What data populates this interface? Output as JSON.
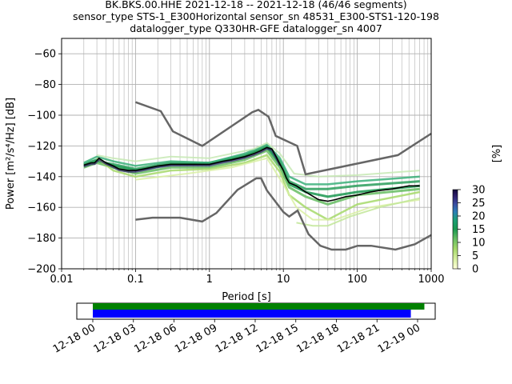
{
  "title_lines": [
    "BK.BKS.00.HHE   2021-12-18 -- 2021-12-18  (46/46 segments)",
    "sensor_type STS-1_E300Horizontal sensor_sn 48531_E300-STS1-120-198",
    "datalogger_type Q330HR-GFE datalogger_sn 4007"
  ],
  "ylabel": "Power [m²/s⁴/Hz] [dB]",
  "xlabel": "Period [s]",
  "colorbar_label": "[%]",
  "colors": {
    "model": "#666666",
    "mean": "#000000",
    "grid": "#b0b0b0",
    "data_bar": "#008000",
    "gap_bar": "#0000ff"
  },
  "chart_data": {
    "type": "heatmap",
    "subtype": "ppsd",
    "x_scale": "log",
    "xlim": [
      0.01,
      1000
    ],
    "ylim": [
      -200,
      -50
    ],
    "x_ticks": [
      {
        "value": 0.01,
        "label": "0.01"
      },
      {
        "value": 0.1,
        "label": "0.1"
      },
      {
        "value": 1,
        "label": "1"
      },
      {
        "value": 10,
        "label": "10"
      },
      {
        "value": 100,
        "label": "100"
      },
      {
        "value": 1000,
        "label": "1000"
      }
    ],
    "y_ticks": [
      {
        "value": -60,
        "label": "−60"
      },
      {
        "value": -80,
        "label": "−80"
      },
      {
        "value": -100,
        "label": "−100"
      },
      {
        "value": -120,
        "label": "−120"
      },
      {
        "value": -140,
        "label": "−140"
      },
      {
        "value": -160,
        "label": "−160"
      },
      {
        "value": -180,
        "label": "−180"
      },
      {
        "value": -200,
        "label": "−200"
      }
    ],
    "grid": true,
    "high_noise_model": [
      [
        0.1,
        -91.5
      ],
      [
        0.22,
        -97.4
      ],
      [
        0.32,
        -110.5
      ],
      [
        0.8,
        -120
      ],
      [
        3.8,
        -98
      ],
      [
        4.6,
        -96.5
      ],
      [
        6.3,
        -101
      ],
      [
        7.9,
        -113.5
      ],
      [
        15.4,
        -120
      ],
      [
        20,
        -138.5
      ],
      [
        354.8,
        -126
      ],
      [
        1000,
        -112
      ]
    ],
    "low_noise_model": [
      [
        0.1,
        -168
      ],
      [
        0.17,
        -166.7
      ],
      [
        0.4,
        -166.7
      ],
      [
        0.8,
        -169.2
      ],
      [
        1.24,
        -163.7
      ],
      [
        2.4,
        -148.6
      ],
      [
        4.3,
        -141.1
      ],
      [
        5,
        -141.1
      ],
      [
        6,
        -149
      ],
      [
        10,
        -163
      ],
      [
        12,
        -166
      ],
      [
        15.6,
        -162.1
      ],
      [
        21.9,
        -177.5
      ],
      [
        31.6,
        -185
      ],
      [
        45,
        -187.5
      ],
      [
        70,
        -187.5
      ],
      [
        101,
        -185
      ],
      [
        154,
        -185
      ],
      [
        328,
        -187.5
      ],
      [
        600,
        -184
      ],
      [
        1000,
        -178
      ]
    ],
    "mean_curve": [
      [
        0.02,
        -132.5
      ],
      [
        0.025,
        -131
      ],
      [
        0.028,
        -131
      ],
      [
        0.032,
        -128
      ],
      [
        0.04,
        -131
      ],
      [
        0.05,
        -133
      ],
      [
        0.06,
        -135
      ],
      [
        0.08,
        -136
      ],
      [
        0.1,
        -136
      ],
      [
        0.13,
        -135
      ],
      [
        0.2,
        -133
      ],
      [
        0.3,
        -132
      ],
      [
        0.5,
        -132
      ],
      [
        0.8,
        -132
      ],
      [
        1,
        -132
      ],
      [
        1.5,
        -130
      ],
      [
        2,
        -129
      ],
      [
        3,
        -127
      ],
      [
        4,
        -125
      ],
      [
        5,
        -123
      ],
      [
        6,
        -121
      ],
      [
        7,
        -122
      ],
      [
        8,
        -127
      ],
      [
        9,
        -132
      ],
      [
        10,
        -136
      ],
      [
        11,
        -141
      ],
      [
        12,
        -144
      ],
      [
        15,
        -146
      ],
      [
        20,
        -150
      ],
      [
        30,
        -155
      ],
      [
        40,
        -156
      ],
      [
        50,
        -155
      ],
      [
        70,
        -153
      ],
      [
        100,
        -152
      ],
      [
        150,
        -150
      ],
      [
        200,
        -149
      ],
      [
        300,
        -148
      ],
      [
        500,
        -146
      ],
      [
        700,
        -146
      ]
    ],
    "density_percentile_curves": [
      [
        [
          0.02,
          -133
        ],
        [
          0.03,
          -130
        ],
        [
          0.05,
          -132
        ],
        [
          0.1,
          -135
        ],
        [
          0.3,
          -131
        ],
        [
          1,
          -131
        ],
        [
          3,
          -126
        ],
        [
          6,
          -120
        ],
        [
          9,
          -130
        ],
        [
          12,
          -143
        ],
        [
          20,
          -148
        ],
        [
          40,
          -148
        ],
        [
          100,
          -146
        ],
        [
          700,
          -143
        ]
      ],
      [
        [
          0.02,
          -132
        ],
        [
          0.03,
          -129
        ],
        [
          0.05,
          -133
        ],
        [
          0.1,
          -136
        ],
        [
          0.3,
          -132
        ],
        [
          1,
          -132
        ],
        [
          3,
          -127
        ],
        [
          6,
          -121
        ],
        [
          9,
          -132
        ],
        [
          12,
          -145
        ],
        [
          20,
          -150
        ],
        [
          40,
          -153
        ],
        [
          100,
          -150
        ],
        [
          700,
          -146
        ]
      ],
      [
        [
          0.02,
          -134
        ],
        [
          0.03,
          -131
        ],
        [
          0.05,
          -134
        ],
        [
          0.1,
          -138
        ],
        [
          0.3,
          -134
        ],
        [
          1,
          -134
        ],
        [
          3,
          -129
        ],
        [
          6,
          -123
        ],
        [
          9,
          -134
        ],
        [
          12,
          -147
        ],
        [
          20,
          -153
        ],
        [
          40,
          -158
        ],
        [
          100,
          -152
        ],
        [
          700,
          -148
        ]
      ],
      [
        [
          0.02,
          -131
        ],
        [
          0.03,
          -127
        ],
        [
          0.05,
          -130
        ],
        [
          0.1,
          -133
        ],
        [
          0.3,
          -130
        ],
        [
          1,
          -131
        ],
        [
          3,
          -125
        ],
        [
          6,
          -119
        ],
        [
          9,
          -128
        ],
        [
          12,
          -140
        ],
        [
          20,
          -145
        ],
        [
          40,
          -145
        ],
        [
          100,
          -143
        ],
        [
          700,
          -140
        ]
      ],
      [
        [
          0.03,
          -128
        ],
        [
          0.05,
          -136
        ],
        [
          0.1,
          -140
        ],
        [
          0.3,
          -136
        ],
        [
          1,
          -135
        ],
        [
          3,
          -131
        ],
        [
          6,
          -126
        ],
        [
          9,
          -137
        ],
        [
          12,
          -152
        ],
        [
          20,
          -160
        ],
        [
          40,
          -168
        ],
        [
          100,
          -158
        ],
        [
          700,
          -150
        ]
      ],
      [
        [
          0.1,
          -142
        ],
        [
          0.5,
          -138
        ],
        [
          2,
          -134
        ],
        [
          6,
          -128
        ],
        [
          10,
          -145
        ],
        [
          15,
          -160
        ],
        [
          25,
          -168
        ],
        [
          50,
          -168
        ],
        [
          150,
          -160
        ],
        [
          700,
          -155
        ]
      ],
      [
        [
          0.03,
          -126
        ],
        [
          0.05,
          -128
        ],
        [
          0.1,
          -130
        ],
        [
          0.3,
          -127
        ],
        [
          1,
          -128
        ],
        [
          4,
          -122
        ],
        [
          6,
          -118
        ],
        [
          9,
          -125
        ],
        [
          14,
          -138
        ],
        [
          30,
          -140
        ],
        [
          100,
          -139
        ],
        [
          700,
          -136
        ]
      ],
      [
        [
          15,
          -170
        ],
        [
          25,
          -172
        ],
        [
          40,
          -172
        ],
        [
          80,
          -166
        ],
        [
          200,
          -160
        ],
        [
          700,
          -154
        ]
      ]
    ],
    "colorbar": {
      "min": 0,
      "max": 30,
      "ticks": [
        {
          "value": 0,
          "label": "0"
        },
        {
          "value": 5,
          "label": "5"
        },
        {
          "value": 10,
          "label": "10"
        },
        {
          "value": 15,
          "label": "15"
        },
        {
          "value": 20,
          "label": "20"
        },
        {
          "value": 25,
          "label": "25"
        },
        {
          "value": 30,
          "label": "30"
        }
      ]
    },
    "timeline": {
      "x_ticks": [
        {
          "hours": 0,
          "label": "12-18 00"
        },
        {
          "hours": 3,
          "label": "12-18 03"
        },
        {
          "hours": 6,
          "label": "12-18 06"
        },
        {
          "hours": 9,
          "label": "12-18 09"
        },
        {
          "hours": 12,
          "label": "12-18 12"
        },
        {
          "hours": 15,
          "label": "12-18 15"
        },
        {
          "hours": 18,
          "label": "12-18 18"
        },
        {
          "hours": 21,
          "label": "12-18 21"
        },
        {
          "hours": 24,
          "label": "12-19 00"
        }
      ],
      "data_available_hours": [
        0,
        24.5
      ],
      "used_hours": [
        0,
        23.5
      ]
    }
  }
}
